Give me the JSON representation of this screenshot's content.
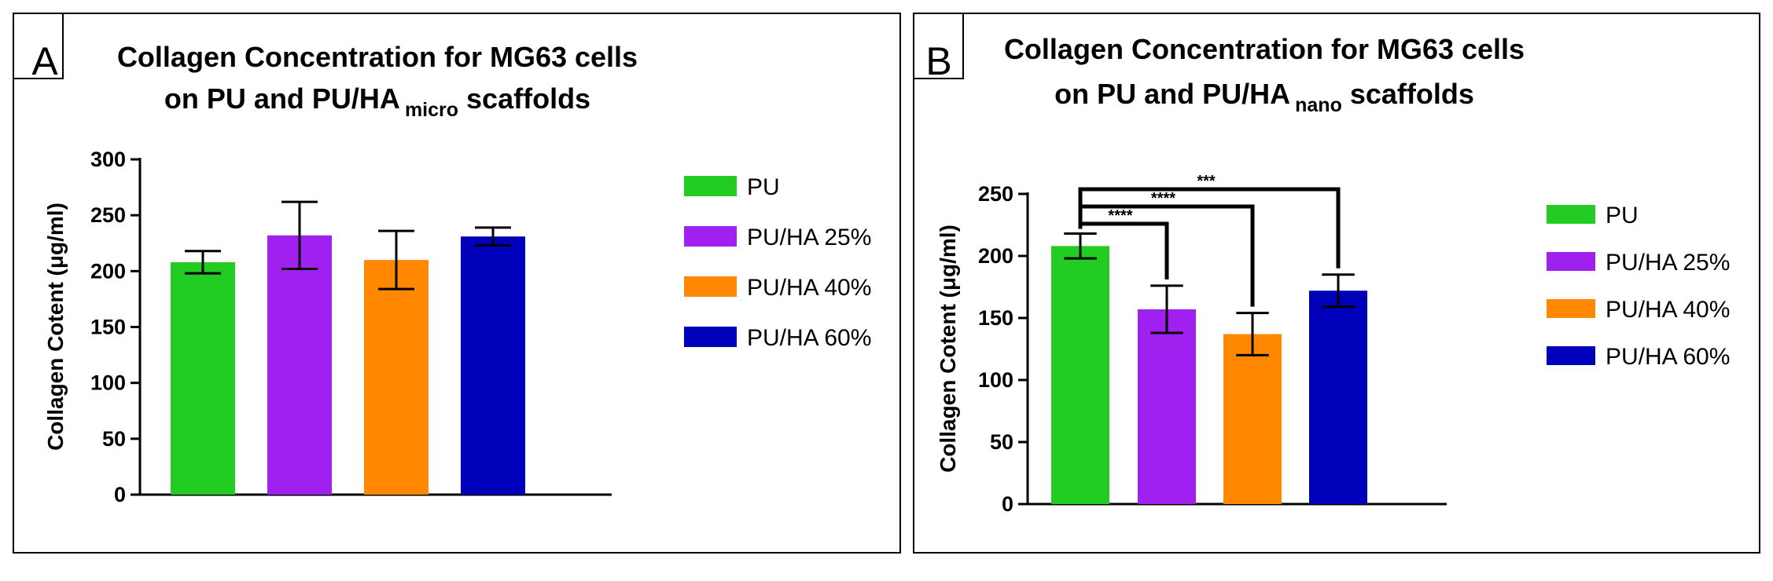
{
  "chart_data": [
    {
      "type": "bar",
      "panel": "A",
      "title": [
        "Collagen Concentration for MG63 cells",
        "on PU and PU/HA",
        "micro",
        " scaffolds"
      ],
      "ylabel": "Collagen Cotent (μg/ml)",
      "xlabel": "",
      "ylim": [
        0,
        300
      ],
      "yticks": [
        0,
        50,
        100,
        150,
        200,
        250,
        300
      ],
      "categories": [
        "PU",
        "PU/HA 25%",
        "PU/HA 40%",
        "PU/HA 60%"
      ],
      "values": [
        208,
        232,
        210,
        231
      ],
      "errors": [
        10,
        30,
        26,
        8
      ],
      "colors": [
        "#22cc22",
        "#a020f0",
        "#ff8800",
        "#0000bb"
      ],
      "legend_position": "right",
      "significance": []
    },
    {
      "type": "bar",
      "panel": "B",
      "title": [
        "Collagen Concentration for MG63 cells",
        "on PU and PU/HA",
        "nano",
        " scaffolds"
      ],
      "ylabel": "Collagen Cotent (μg/ml)",
      "xlabel": "",
      "ylim": [
        0,
        250
      ],
      "yticks": [
        0,
        50,
        100,
        150,
        200,
        250
      ],
      "categories": [
        "PU",
        "PU/HA 25%",
        "PU/HA 40%",
        "PU/HA 60%"
      ],
      "values": [
        208,
        157,
        137,
        172
      ],
      "errors": [
        10,
        19,
        17,
        13
      ],
      "colors": [
        "#22cc22",
        "#a020f0",
        "#ff8800",
        "#0000bb"
      ],
      "legend_position": "right",
      "significance": [
        {
          "from": 0,
          "to": 1,
          "label": "****"
        },
        {
          "from": 0,
          "to": 2,
          "label": "****"
        },
        {
          "from": 0,
          "to": 3,
          "label": "***"
        }
      ]
    }
  ]
}
